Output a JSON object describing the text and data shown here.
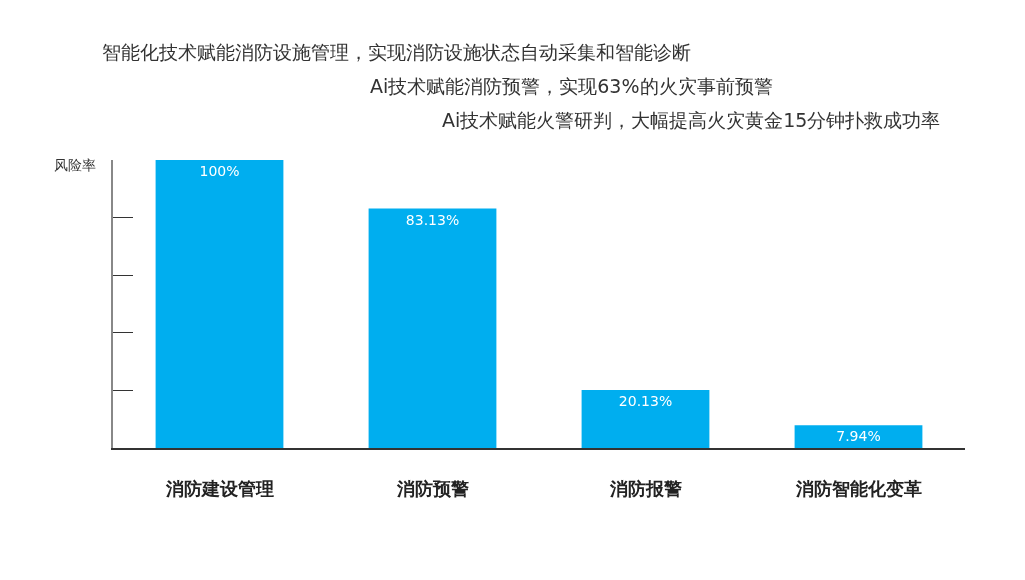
{
  "chart_data": {
    "type": "bar",
    "categories": [
      "消防建设管理",
      "消防预警",
      "消防报警",
      "消防智能化变革"
    ],
    "values": [
      100,
      83.13,
      20.13,
      7.94
    ],
    "color": "#00aeef",
    "value_labels": [
      "100%",
      "83.13%",
      "20.13%",
      "7.94%"
    ],
    "ylabel": "风险率",
    "ylim": [
      0,
      100
    ],
    "tick_labels": "x",
    "annotations": [
      "智能化技术赋能消防设施管理，实现消防设施状态自动采集和智能诊断",
      "Ai技术赋能消防预警，实现63%的火灾事前预警",
      "Ai技术赋能火警研判，大幅提高火灾黄金15分钟扑救成功率"
    ]
  }
}
